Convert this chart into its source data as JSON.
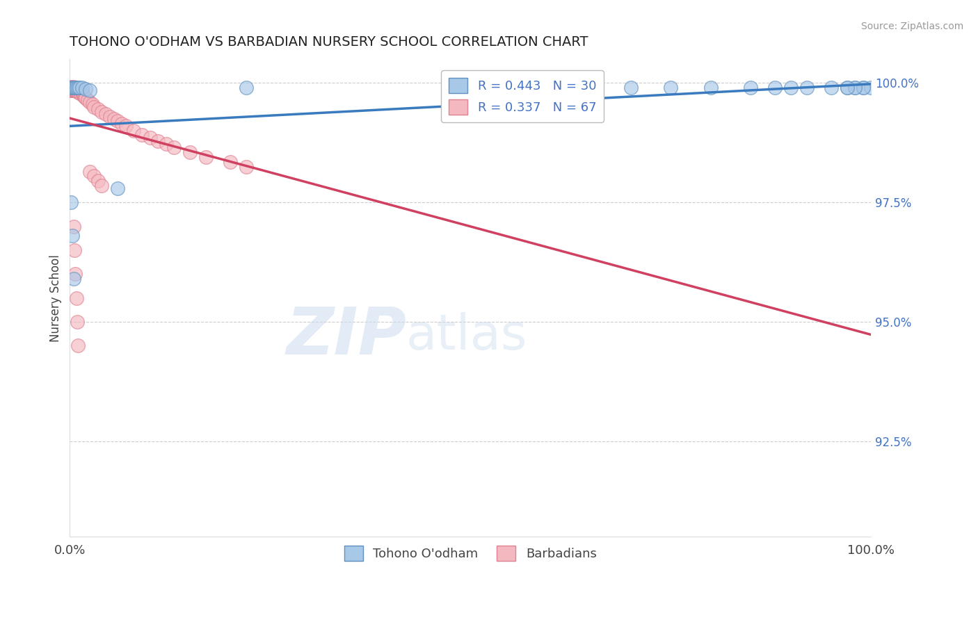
{
  "title": "TOHONO O'ODHAM VS BARBADIAN NURSERY SCHOOL CORRELATION CHART",
  "source_text": "Source: ZipAtlas.com",
  "ylabel": "Nursery School",
  "legend_blue_label": "Tohono O'odham",
  "legend_pink_label": "Barbadians",
  "R_blue": 0.443,
  "N_blue": 30,
  "R_pink": 0.337,
  "N_pink": 67,
  "blue_color": "#a8c8e8",
  "pink_color": "#f4b8c0",
  "trend_blue_color": "#3a7bbf",
  "trend_pink_color": "#d04060",
  "blue_x": [
    0.001,
    0.003,
    0.005,
    0.007,
    0.008,
    0.01,
    0.012,
    0.015,
    0.02,
    0.025,
    0.06,
    0.22,
    0.7,
    0.75,
    0.8,
    0.85,
    0.88,
    0.9,
    0.92,
    0.95,
    0.97,
    0.98,
    0.99,
    1.0,
    0.99,
    0.98,
    0.97,
    0.001,
    0.003,
    0.005
  ],
  "blue_y": [
    0.999,
    0.999,
    0.999,
    0.999,
    0.999,
    0.999,
    0.999,
    0.999,
    0.9988,
    0.9985,
    0.978,
    0.999,
    0.999,
    0.999,
    0.999,
    0.999,
    0.999,
    0.999,
    0.999,
    0.999,
    0.999,
    0.999,
    0.999,
    0.999,
    0.999,
    0.999,
    0.999,
    0.975,
    0.968,
    0.959
  ],
  "pink_x": [
    0.001,
    0.001,
    0.001,
    0.001,
    0.002,
    0.002,
    0.002,
    0.003,
    0.003,
    0.003,
    0.004,
    0.004,
    0.005,
    0.005,
    0.005,
    0.006,
    0.006,
    0.007,
    0.007,
    0.008,
    0.008,
    0.009,
    0.01,
    0.01,
    0.011,
    0.012,
    0.013,
    0.014,
    0.015,
    0.015,
    0.016,
    0.017,
    0.018,
    0.019,
    0.02,
    0.022,
    0.025,
    0.028,
    0.03,
    0.035,
    0.04,
    0.045,
    0.05,
    0.055,
    0.06,
    0.065,
    0.07,
    0.08,
    0.09,
    0.1,
    0.11,
    0.12,
    0.13,
    0.15,
    0.17,
    0.2,
    0.22,
    0.025,
    0.03,
    0.035,
    0.04,
    0.005,
    0.006,
    0.007,
    0.008,
    0.009,
    0.01
  ],
  "pink_y": [
    0.9992,
    0.999,
    0.9988,
    0.9985,
    0.999,
    0.9988,
    0.9985,
    0.999,
    0.9988,
    0.9985,
    0.9988,
    0.9985,
    0.9992,
    0.9988,
    0.9985,
    0.999,
    0.9985,
    0.9988,
    0.9984,
    0.999,
    0.9985,
    0.9982,
    0.9988,
    0.9982,
    0.998,
    0.9985,
    0.9982,
    0.9978,
    0.9985,
    0.998,
    0.9978,
    0.9975,
    0.9972,
    0.997,
    0.9968,
    0.9965,
    0.996,
    0.9955,
    0.995,
    0.9945,
    0.994,
    0.9935,
    0.993,
    0.9925,
    0.992,
    0.9915,
    0.991,
    0.99,
    0.9892,
    0.9885,
    0.9878,
    0.9872,
    0.9865,
    0.9855,
    0.9845,
    0.9835,
    0.9825,
    0.9815,
    0.9805,
    0.9795,
    0.9785,
    0.97,
    0.965,
    0.96,
    0.955,
    0.95,
    0.945
  ],
  "xlim": [
    0.0,
    1.0
  ],
  "ylim": [
    0.905,
    1.005
  ],
  "ytick_right": [
    1.0,
    0.975,
    0.95,
    0.925
  ],
  "ytick_right_labels": [
    "100.0%",
    "97.5%",
    "95.0%",
    "92.5%"
  ],
  "watermark_zip": "ZIP",
  "watermark_atlas": "atlas",
  "background_color": "#ffffff",
  "grid_color": "#cccccc"
}
